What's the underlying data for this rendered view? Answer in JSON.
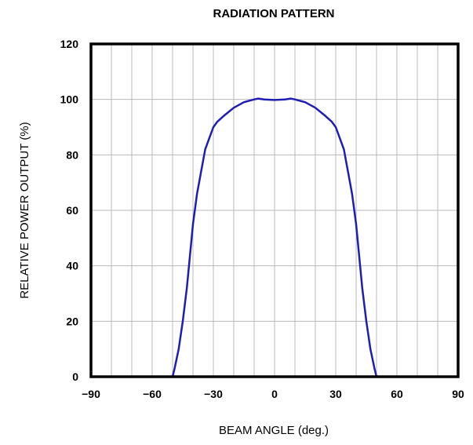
{
  "chart_data": {
    "type": "line",
    "title": "RADIATION PATTERN",
    "xlabel": "BEAM ANGLE (deg.)",
    "ylabel": "RELATIVE POWER OUTPUT (%)",
    "xlim": [
      -90,
      90
    ],
    "ylim": [
      0,
      120
    ],
    "xticks": [
      -90,
      -60,
      -30,
      0,
      30,
      60,
      90
    ],
    "yticks": [
      0,
      20,
      40,
      60,
      80,
      100,
      120
    ],
    "xgrid_step": 10,
    "ygrid_step": 20,
    "grid": true,
    "colors": {
      "series": "#1e1eb4",
      "frame": "#000000",
      "grid": "#b9b9b9"
    },
    "series": [
      {
        "x": [
          -90,
          -50,
          -49,
          -47,
          -45,
          -43,
          -40,
          -38,
          -36,
          -34,
          -32,
          -30,
          -28,
          -25,
          -20,
          -15,
          -10,
          -8,
          -5,
          0,
          5,
          8,
          10,
          15,
          20,
          25,
          28,
          30,
          32,
          34,
          36,
          38,
          40,
          43,
          45,
          47,
          49,
          50,
          90
        ],
        "y": [
          0,
          0,
          3,
          10,
          20,
          32,
          55,
          66,
          74,
          82,
          86,
          90,
          92,
          94,
          97,
          99,
          100,
          100.3,
          100,
          99.8,
          100,
          100.3,
          100,
          99,
          97,
          94,
          92,
          90,
          86,
          82,
          74,
          66,
          55,
          32,
          20,
          10,
          3,
          0,
          0
        ]
      }
    ]
  }
}
